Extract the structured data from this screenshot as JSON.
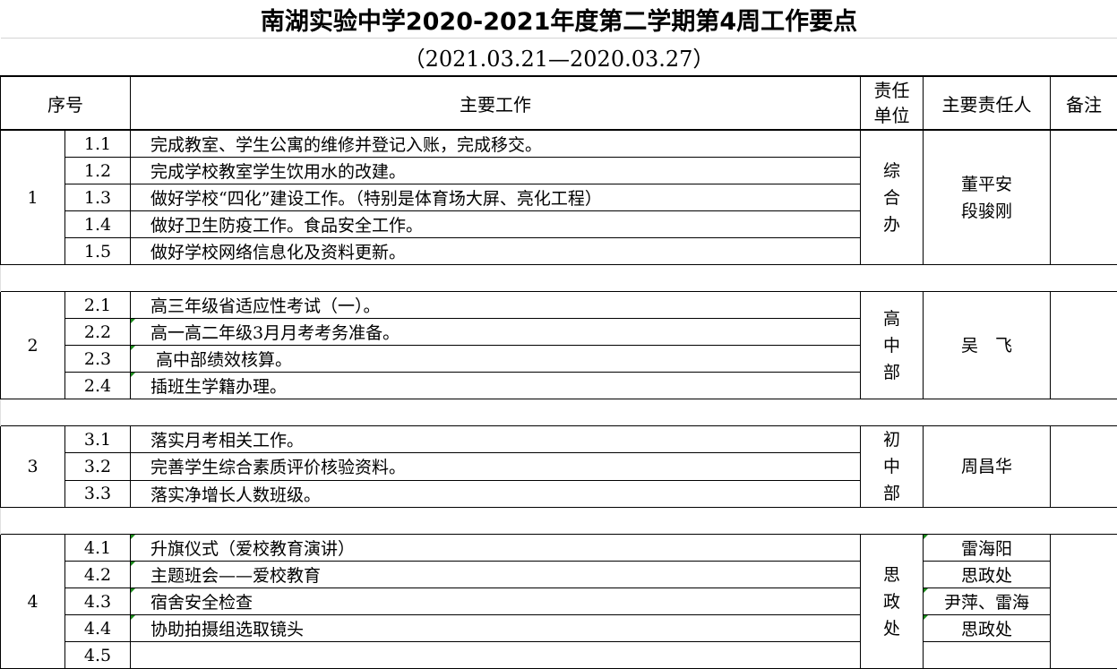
{
  "title": "南湖实验中学2020-2021年度第二学期第4周工作要点",
  "subtitle": "（2021.03.21—2020.03.27）",
  "headers": {
    "seq": "序号",
    "work": "主要工作",
    "unit": "责任单位",
    "person": "主要责任人",
    "remark": "备注"
  },
  "groups": [
    {
      "no": "1",
      "unit": "综合办",
      "person": "董平安\n段骏刚",
      "items": [
        {
          "sub": "1.1",
          "work": "完成教室、学生公寓的维修并登记入账，完成移交。"
        },
        {
          "sub": "1.2",
          "work": "完成学校教室学生饮用水的改建。"
        },
        {
          "sub": "1.3",
          "work": "做好学校“四化”建设工作。（特别是体育场大屏、亮化工程）"
        },
        {
          "sub": "1.4",
          "work": "做好卫生防疫工作。食品安全工作。"
        },
        {
          "sub": "1.5",
          "work": "做好学校网络信息化及资料更新。"
        }
      ]
    },
    {
      "no": "2",
      "unit": "高中部",
      "person": "吴　飞",
      "items": [
        {
          "sub": "2.1",
          "work": "高三年级省适应性考试（一）。"
        },
        {
          "sub": "2.2",
          "work": "高一高二年级3月月考考务准备。"
        },
        {
          "sub": "2.3",
          "work": " 高中部绩效核算。"
        },
        {
          "sub": "2.4",
          "work": "插班生学籍办理。"
        }
      ]
    },
    {
      "no": "3",
      "unit": "初中部",
      "person": "周昌华",
      "items": [
        {
          "sub": "3.1",
          "work": "落实月考相关工作。"
        },
        {
          "sub": "3.2",
          "work": "完善学生综合素质评价核验资料。"
        },
        {
          "sub": "3.3",
          "work": "落实净增长人数班级。"
        }
      ]
    },
    {
      "no": "4",
      "unit": "思政处",
      "person": null,
      "items": [
        {
          "sub": "4.1",
          "work": "升旗仪式（爱校教育演讲）",
          "person": "雷海阳"
        },
        {
          "sub": "4.2",
          "work": "主题班会——爱校教育",
          "person": "思政处"
        },
        {
          "sub": "4.3",
          "work": "宿舍安全检查",
          "person": "尹萍、雷海"
        },
        {
          "sub": "4.4",
          "work": "协助拍摄组选取镜头",
          "person": "思政处"
        },
        {
          "sub": "4.5",
          "work": "",
          "person": ""
        }
      ]
    }
  ]
}
